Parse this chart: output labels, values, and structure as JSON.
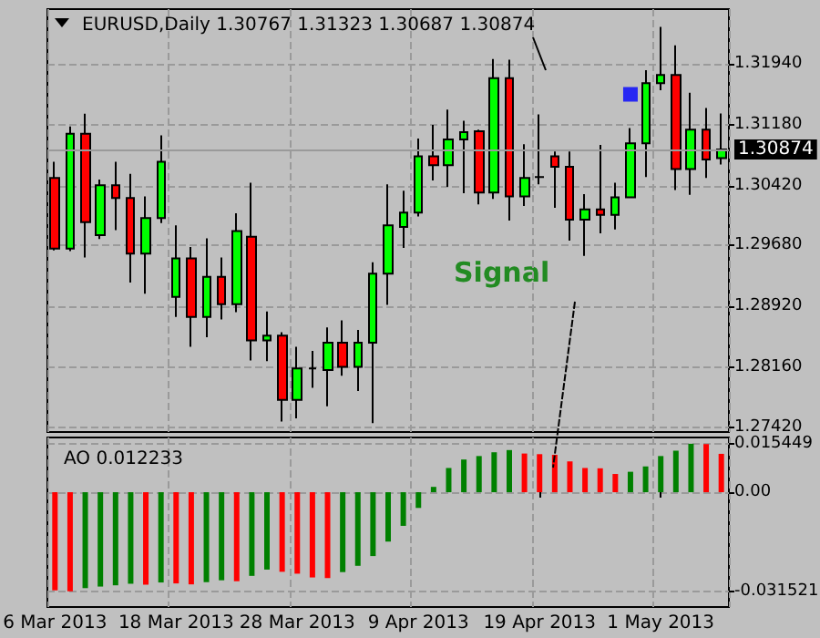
{
  "chart_data": [
    {
      "type": "candlestick",
      "title": "EURUSD,Daily 1.30767 1.31323 1.30687 1.30874",
      "categories": [
        null,
        null,
        null,
        null,
        null,
        null,
        null,
        null,
        null,
        null,
        null,
        null,
        null,
        null,
        null,
        null,
        null,
        null,
        null,
        null,
        null,
        null,
        null,
        null,
        null,
        null,
        null,
        null,
        null,
        null,
        null,
        null,
        null,
        null,
        null,
        null,
        null,
        null,
        null,
        null,
        null,
        null,
        null,
        null,
        null
      ],
      "series": [
        {
          "type": "candlestick",
          "ohlc": [
            [
              1.3052,
              1.3072,
              1.2962,
              1.2964
            ],
            [
              1.2964,
              1.3116,
              1.2961,
              1.3107
            ],
            [
              1.3107,
              1.3132,
              1.2953,
              1.2997
            ],
            [
              1.2981,
              1.305,
              1.2976,
              1.3043
            ],
            [
              1.3043,
              1.3072,
              1.2987,
              1.3027
            ],
            [
              1.3027,
              1.3057,
              1.2922,
              1.2958
            ],
            [
              1.2958,
              1.3029,
              1.2908,
              1.3002
            ],
            [
              1.3002,
              1.3105,
              1.2996,
              1.3072
            ],
            [
              1.2904,
              1.2993,
              1.2879,
              1.2952
            ],
            [
              1.2952,
              1.2966,
              1.2842,
              1.2879
            ],
            [
              1.2879,
              1.2977,
              1.2854,
              1.2929
            ],
            [
              1.2929,
              1.2953,
              1.2876,
              1.2895
            ],
            [
              1.2895,
              1.3008,
              1.2885,
              1.2986
            ],
            [
              1.2979,
              1.3046,
              1.2825,
              1.285
            ],
            [
              1.285,
              1.2886,
              1.2824,
              1.2856
            ],
            [
              1.2856,
              1.286,
              1.2749,
              1.2776
            ],
            [
              1.2776,
              1.2842,
              1.2753,
              1.2815
            ],
            [
              1.2815,
              1.2837,
              1.2791,
              1.2815
            ],
            [
              1.2813,
              1.2866,
              1.2768,
              1.2847
            ],
            [
              1.2847,
              1.2875,
              1.2806,
              1.2817
            ],
            [
              1.2817,
              1.2863,
              1.2787,
              1.2847
            ],
            [
              1.2847,
              1.2947,
              1.2747,
              1.2933
            ],
            [
              1.2933,
              1.3044,
              1.2894,
              1.2993
            ],
            [
              1.2991,
              1.3036,
              1.2965,
              1.3009
            ],
            [
              1.3009,
              1.3101,
              1.3004,
              1.3079
            ],
            [
              1.3079,
              1.3118,
              1.3049,
              1.3068
            ],
            [
              1.3068,
              1.3137,
              1.3041,
              1.31
            ],
            [
              1.31,
              1.3123,
              1.3033,
              1.3109
            ],
            [
              1.311,
              1.3112,
              1.3019,
              1.3034
            ],
            [
              1.3034,
              1.32,
              1.3026,
              1.3176
            ],
            [
              1.3176,
              1.3199,
              1.2999,
              1.3029
            ],
            [
              1.3029,
              1.3094,
              1.3017,
              1.3052
            ],
            [
              1.3053,
              1.3131,
              1.3044,
              1.3053
            ],
            [
              1.3079,
              1.3085,
              1.3015,
              1.3066
            ],
            [
              1.3066,
              1.3085,
              1.2974,
              1.3
            ],
            [
              1.3,
              1.3032,
              1.2955,
              1.3013
            ],
            [
              1.3013,
              1.3093,
              1.2983,
              1.3006
            ],
            [
              1.3006,
              1.3046,
              1.2988,
              1.3028
            ],
            [
              1.3028,
              1.3114,
              1.3028,
              1.3095
            ],
            [
              1.3095,
              1.3186,
              1.3053,
              1.317
            ],
            [
              1.317,
              1.324,
              1.3161,
              1.318
            ],
            [
              1.318,
              1.3217,
              1.3037,
              1.3063
            ],
            [
              1.3063,
              1.3158,
              1.3031,
              1.3112
            ],
            [
              1.3112,
              1.3139,
              1.3052,
              1.3075
            ],
            [
              1.30767,
              1.31323,
              1.30687,
              1.30874
            ]
          ],
          "colors": [
            "#ff0000",
            "#00ff00",
            "#ff0000",
            "#00ff00",
            "#ff0000",
            "#ff0000",
            "#00ff00",
            "#00ff00",
            "#00ff00",
            "#ff0000",
            "#00ff00",
            "#ff0000",
            "#00ff00",
            "#ff0000",
            "#00ff00",
            "#ff0000",
            "#00ff00",
            "#000000",
            "#00ff00",
            "#ff0000",
            "#00ff00",
            "#00ff00",
            "#00ff00",
            "#00ff00",
            "#00ff00",
            "#ff0000",
            "#00ff00",
            "#00ff00",
            "#ff0000",
            "#00ff00",
            "#ff0000",
            "#00ff00",
            "#000000",
            "#ff0000",
            "#ff0000",
            "#00ff00",
            "#ff0000",
            "#00ff00",
            "#00ff00",
            "#00ff00",
            "#00ff00",
            "#ff0000",
            "#00ff00",
            "#ff0000",
            "#00ff00"
          ]
        },
        {
          "type": "scatter",
          "color": "#0000ff",
          "marker": "square",
          "values": [
            null,
            null,
            null,
            null,
            null,
            null,
            null,
            null,
            null,
            null,
            null,
            null,
            null,
            null,
            null,
            null,
            null,
            null,
            null,
            null,
            null,
            null,
            null,
            null,
            null,
            null,
            null,
            null,
            null,
            null,
            null,
            null,
            null,
            null,
            null,
            null,
            null,
            null,
            1.3156,
            null,
            null,
            null,
            null,
            null,
            null
          ]
        }
      ],
      "ylim": [
        1.2736,
        1.3262
      ],
      "yticks": [
        {
          "value": 1.2742,
          "label": "1.27420"
        },
        {
          "value": 1.2816,
          "label": "1.28160"
        },
        {
          "value": 1.2892,
          "label": "1.28920"
        },
        {
          "value": 1.2968,
          "label": "1.29680"
        },
        {
          "value": 1.3042,
          "label": "1.30420"
        },
        {
          "value": 1.3118,
          "label": "1.31180"
        },
        {
          "value": 1.3194,
          "label": "1.31940"
        }
      ],
      "grid": true,
      "tick_labels": "y",
      "ref_lines": [
        {
          "axis": "y",
          "value": 1.30874,
          "label": "1.30874"
        }
      ],
      "annotations": [
        "Signal"
      ]
    },
    {
      "type": "bar",
      "title": "AO 0.012233",
      "categories": [
        "6 Mar 2013",
        null,
        null,
        null,
        null,
        null,
        null,
        null,
        "18 Mar 2013",
        null,
        null,
        null,
        null,
        null,
        null,
        null,
        "28 Mar 2013",
        null,
        null,
        null,
        null,
        null,
        null,
        null,
        "9 Apr 2013",
        null,
        null,
        null,
        null,
        null,
        null,
        null,
        "19 Apr 2013",
        null,
        null,
        null,
        null,
        null,
        null,
        null,
        "1 May 2013",
        null,
        null,
        null,
        null
      ],
      "values": [
        -0.0312,
        -0.0315,
        -0.0305,
        -0.03,
        -0.0296,
        -0.0291,
        -0.0294,
        -0.0287,
        -0.029,
        -0.0293,
        -0.0286,
        -0.028,
        -0.0283,
        -0.0266,
        -0.0246,
        -0.0253,
        -0.0259,
        -0.0271,
        -0.0273,
        -0.0254,
        -0.0234,
        -0.0203,
        -0.0157,
        -0.0107,
        -0.005,
        0.0017,
        0.0077,
        0.0104,
        0.0115,
        0.0127,
        0.0134,
        0.0123,
        0.0121,
        0.0119,
        0.0098,
        0.0077,
        0.0076,
        0.0058,
        0.0065,
        0.0082,
        0.0115,
        0.0132,
        0.0154,
        0.0153,
        0.0122
      ],
      "colors": [
        "#ff0000",
        "#ff0000",
        "#008000",
        "#008000",
        "#008000",
        "#008000",
        "#ff0000",
        "#008000",
        "#ff0000",
        "#ff0000",
        "#008000",
        "#008000",
        "#ff0000",
        "#008000",
        "#008000",
        "#ff0000",
        "#ff0000",
        "#ff0000",
        "#ff0000",
        "#008000",
        "#008000",
        "#008000",
        "#008000",
        "#008000",
        "#008000",
        "#008000",
        "#008000",
        "#008000",
        "#008000",
        "#008000",
        "#008000",
        "#ff0000",
        "#ff0000",
        "#ff0000",
        "#ff0000",
        "#ff0000",
        "#ff0000",
        "#ff0000",
        "#008000",
        "#008000",
        "#008000",
        "#008000",
        "#008000",
        "#ff0000",
        "#ff0000"
      ],
      "ylim": [
        -0.0365,
        0.0174
      ],
      "yticks": [
        0.015449,
        {
          "value": 0,
          "label": "0.00"
        },
        -0.031521
      ],
      "grid": true
    }
  ]
}
